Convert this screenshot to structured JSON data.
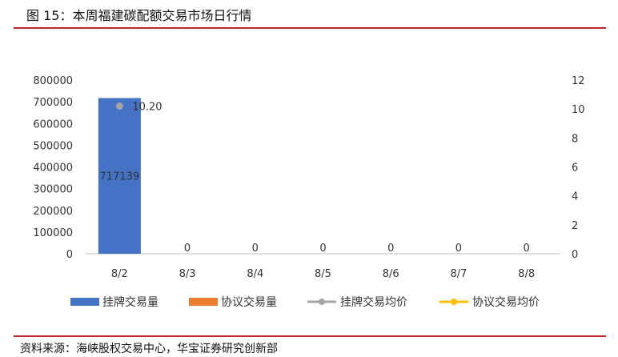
{
  "figure": {
    "title": "图 15：本周福建碳配额交易市场日行情",
    "source": "资料来源：海峡股权交易中心，华宝证券研究创新部"
  },
  "chart_data": {
    "type": "bar",
    "categories": [
      "8/2",
      "8/3",
      "8/4",
      "8/5",
      "8/6",
      "8/7",
      "8/8"
    ],
    "series": [
      {
        "name": "挂牌交易量",
        "kind": "bar",
        "axis": "left",
        "color": "#4472C4",
        "values": [
          717139,
          0,
          0,
          0,
          0,
          0,
          0
        ],
        "labels": [
          "717139",
          "0",
          "0",
          "0",
          "0",
          "0",
          "0"
        ]
      },
      {
        "name": "协议交易量",
        "kind": "bar",
        "axis": "left",
        "color": "#ED7D31",
        "values": [
          0,
          0,
          0,
          0,
          0,
          0,
          0
        ]
      },
      {
        "name": "挂牌交易均价",
        "kind": "line",
        "axis": "right",
        "color": "#A5A5A5",
        "values": [
          10.2,
          null,
          null,
          null,
          null,
          null,
          null
        ],
        "labels": [
          "10.20",
          "",
          "",
          "",
          "",
          "",
          ""
        ]
      },
      {
        "name": "协议交易均价",
        "kind": "line",
        "axis": "right",
        "color": "#FFC000",
        "values": [
          null,
          null,
          null,
          null,
          null,
          null,
          null
        ]
      }
    ],
    "y_left": {
      "min": 0,
      "max": 800000,
      "ticks": [
        "0",
        "100000",
        "200000",
        "300000",
        "400000",
        "500000",
        "600000",
        "700000",
        "800000"
      ]
    },
    "y_right": {
      "min": 0,
      "max": 12,
      "ticks": [
        "0",
        "2",
        "4",
        "6",
        "8",
        "10",
        "12"
      ]
    },
    "legend_position": "bottom",
    "grid": false
  }
}
